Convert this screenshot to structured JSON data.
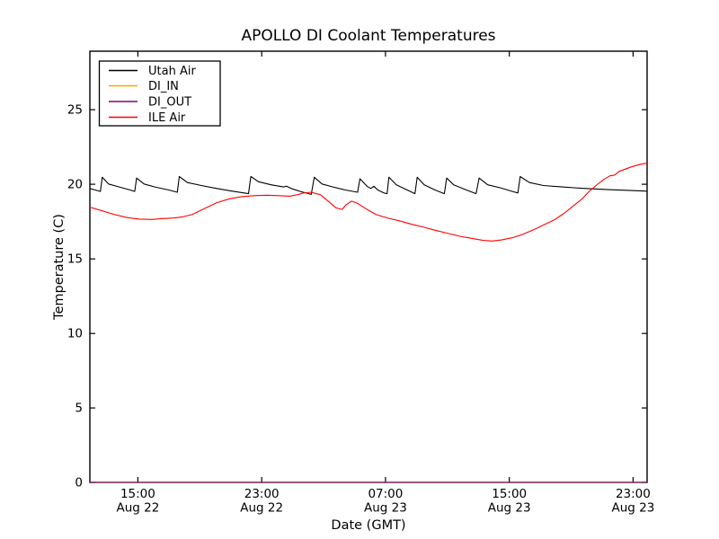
{
  "chart_data": {
    "type": "line",
    "title": "APOLLO DI Coolant Temperatures",
    "xlabel": "Date (GMT)",
    "ylabel": "Temperature (C)",
    "xlim": [
      0,
      36
    ],
    "ylim": [
      0,
      28.9
    ],
    "x_unit_note": "hours elapsed from Aug 22 12:00 GMT",
    "grid": "off",
    "legend_position": "upper left",
    "yticks": [
      "0",
      "5",
      "10",
      "15",
      "20",
      "25"
    ],
    "ytick_values": [
      0,
      5,
      10,
      15,
      20,
      25
    ],
    "xticks": [
      {
        "t": 3.1,
        "time": "15:00",
        "date": "Aug 22"
      },
      {
        "t": 11.1,
        "time": "23:00",
        "date": "Aug 22"
      },
      {
        "t": 19.1,
        "time": "07:00",
        "date": "Aug 23"
      },
      {
        "t": 27.1,
        "time": "15:00",
        "date": "Aug 23"
      },
      {
        "t": 35.1,
        "time": "23:00",
        "date": "Aug 23"
      }
    ],
    "series": [
      {
        "id": "utah-air",
        "name": "Utah Air",
        "color": "#000000",
        "points": [
          [
            0,
            19.7
          ],
          [
            0.35,
            19.6
          ],
          [
            0.68,
            19.5
          ],
          [
            0.8,
            20.45
          ],
          [
            1.2,
            20.0
          ],
          [
            1.9,
            19.8
          ],
          [
            2.6,
            19.6
          ],
          [
            2.9,
            19.5
          ],
          [
            3.02,
            20.4
          ],
          [
            3.5,
            20.0
          ],
          [
            4.2,
            19.8
          ],
          [
            5.1,
            19.6
          ],
          [
            5.65,
            19.45
          ],
          [
            5.78,
            20.5
          ],
          [
            6.3,
            20.1
          ],
          [
            7.2,
            19.9
          ],
          [
            8.2,
            19.7
          ],
          [
            9.3,
            19.5
          ],
          [
            10.25,
            19.35
          ],
          [
            10.4,
            20.5
          ],
          [
            10.9,
            20.15
          ],
          [
            11.7,
            19.95
          ],
          [
            12.5,
            19.8
          ],
          [
            12.7,
            19.85
          ],
          [
            13.0,
            19.7
          ],
          [
            13.6,
            19.5
          ],
          [
            14.3,
            19.3
          ],
          [
            14.5,
            20.45
          ],
          [
            15.0,
            20.0
          ],
          [
            15.7,
            19.8
          ],
          [
            16.5,
            19.6
          ],
          [
            17.3,
            19.45
          ],
          [
            17.45,
            20.35
          ],
          [
            17.9,
            19.85
          ],
          [
            18.15,
            19.7
          ],
          [
            18.35,
            19.85
          ],
          [
            18.6,
            19.6
          ],
          [
            19.0,
            19.4
          ],
          [
            19.2,
            19.35
          ],
          [
            19.32,
            20.45
          ],
          [
            19.8,
            19.95
          ],
          [
            20.5,
            19.6
          ],
          [
            21.0,
            19.35
          ],
          [
            21.15,
            20.45
          ],
          [
            21.6,
            19.95
          ],
          [
            22.3,
            19.6
          ],
          [
            22.9,
            19.35
          ],
          [
            23.05,
            20.4
          ],
          [
            23.5,
            19.95
          ],
          [
            24.2,
            19.65
          ],
          [
            24.95,
            19.35
          ],
          [
            25.15,
            20.4
          ],
          [
            25.7,
            19.95
          ],
          [
            26.5,
            19.75
          ],
          [
            27.3,
            19.5
          ],
          [
            27.65,
            19.4
          ],
          [
            27.8,
            20.5
          ],
          [
            28.4,
            20.1
          ],
          [
            29.3,
            19.9
          ],
          [
            30.5,
            19.8
          ],
          [
            32.0,
            19.7
          ],
          [
            33.5,
            19.62
          ],
          [
            35.0,
            19.56
          ],
          [
            36,
            19.52
          ]
        ]
      },
      {
        "id": "di-in",
        "name": "DI_IN",
        "color": "#ffa500",
        "points": [
          [
            0,
            0
          ],
          [
            36,
            0
          ]
        ]
      },
      {
        "id": "di-out",
        "name": "DI_OUT",
        "color": "#800080",
        "points": [
          [
            0,
            0
          ],
          [
            36,
            0
          ]
        ]
      },
      {
        "id": "ile-air",
        "name": "ILE Air",
        "color": "#ff0000",
        "points": [
          [
            0,
            18.45
          ],
          [
            0.8,
            18.2
          ],
          [
            1.6,
            17.95
          ],
          [
            2.4,
            17.75
          ],
          [
            3.2,
            17.65
          ],
          [
            4.0,
            17.62
          ],
          [
            4.6,
            17.68
          ],
          [
            5.4,
            17.72
          ],
          [
            6.0,
            17.8
          ],
          [
            6.6,
            17.95
          ],
          [
            7.4,
            18.35
          ],
          [
            8.2,
            18.75
          ],
          [
            9.0,
            19.0
          ],
          [
            9.8,
            19.15
          ],
          [
            10.6,
            19.22
          ],
          [
            11.4,
            19.25
          ],
          [
            12.2,
            19.22
          ],
          [
            12.9,
            19.18
          ],
          [
            13.4,
            19.28
          ],
          [
            13.8,
            19.4
          ],
          [
            14.3,
            19.45
          ],
          [
            14.9,
            19.28
          ],
          [
            15.4,
            18.85
          ],
          [
            15.9,
            18.4
          ],
          [
            16.3,
            18.3
          ],
          [
            16.55,
            18.6
          ],
          [
            16.9,
            18.85
          ],
          [
            17.3,
            18.7
          ],
          [
            17.9,
            18.3
          ],
          [
            18.5,
            17.95
          ],
          [
            19.3,
            17.7
          ],
          [
            20.1,
            17.5
          ],
          [
            20.8,
            17.3
          ],
          [
            21.6,
            17.1
          ],
          [
            22.3,
            16.9
          ],
          [
            23.1,
            16.7
          ],
          [
            23.9,
            16.5
          ],
          [
            24.7,
            16.35
          ],
          [
            25.4,
            16.22
          ],
          [
            26.0,
            16.18
          ],
          [
            26.6,
            16.25
          ],
          [
            27.3,
            16.4
          ],
          [
            27.9,
            16.6
          ],
          [
            28.6,
            16.9
          ],
          [
            29.3,
            17.25
          ],
          [
            30.0,
            17.6
          ],
          [
            30.6,
            18.0
          ],
          [
            31.2,
            18.5
          ],
          [
            31.8,
            19.0
          ],
          [
            32.2,
            19.45
          ],
          [
            32.7,
            19.9
          ],
          [
            33.2,
            20.3
          ],
          [
            33.6,
            20.55
          ],
          [
            33.9,
            20.6
          ],
          [
            34.2,
            20.85
          ],
          [
            34.6,
            21.0
          ],
          [
            35.0,
            21.15
          ],
          [
            35.5,
            21.3
          ],
          [
            36,
            21.4
          ]
        ]
      }
    ]
  }
}
